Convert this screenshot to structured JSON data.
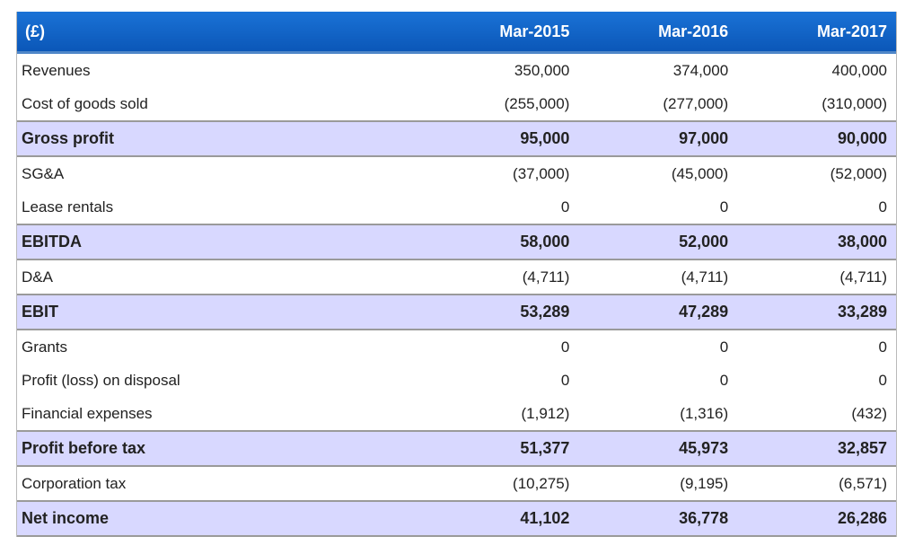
{
  "table": {
    "header": {
      "label": "(£)",
      "periods": [
        "Mar-2015",
        "Mar-2016",
        "Mar-2017"
      ]
    },
    "rows": [
      {
        "label": "Revenues",
        "values": [
          "350,000",
          "374,000",
          "400,000"
        ],
        "bold": false
      },
      {
        "label": "Cost of goods sold",
        "values": [
          "(255,000)",
          "(277,000)",
          "(310,000)"
        ],
        "bold": false
      },
      {
        "label": "Gross profit",
        "values": [
          "95,000",
          "97,000",
          "90,000"
        ],
        "bold": true
      },
      {
        "label": "SG&A",
        "values": [
          "(37,000)",
          "(45,000)",
          "(52,000)"
        ],
        "bold": false
      },
      {
        "label": "Lease rentals",
        "values": [
          "0",
          "0",
          "0"
        ],
        "bold": false
      },
      {
        "label": "EBITDA",
        "values": [
          "58,000",
          "52,000",
          "38,000"
        ],
        "bold": true
      },
      {
        "label": "D&A",
        "values": [
          "(4,711)",
          "(4,711)",
          "(4,711)"
        ],
        "bold": false
      },
      {
        "label": "EBIT",
        "values": [
          "53,289",
          "47,289",
          "33,289"
        ],
        "bold": true
      },
      {
        "label": "Grants",
        "values": [
          "0",
          "0",
          "0"
        ],
        "bold": false
      },
      {
        "label": "Profit (loss) on disposal",
        "values": [
          "0",
          "0",
          "0"
        ],
        "bold": false
      },
      {
        "label": "Financial expenses",
        "values": [
          "(1,912)",
          "(1,316)",
          "(432)"
        ],
        "bold": false
      },
      {
        "label": "Profit before tax",
        "values": [
          "51,377",
          "45,973",
          "32,857"
        ],
        "bold": true
      },
      {
        "label": "Corporation tax",
        "values": [
          "(10,275)",
          "(9,195)",
          "(6,571)"
        ],
        "bold": false
      },
      {
        "label": "Net income",
        "values": [
          "41,102",
          "36,778",
          "26,286"
        ],
        "bold": true
      }
    ]
  }
}
